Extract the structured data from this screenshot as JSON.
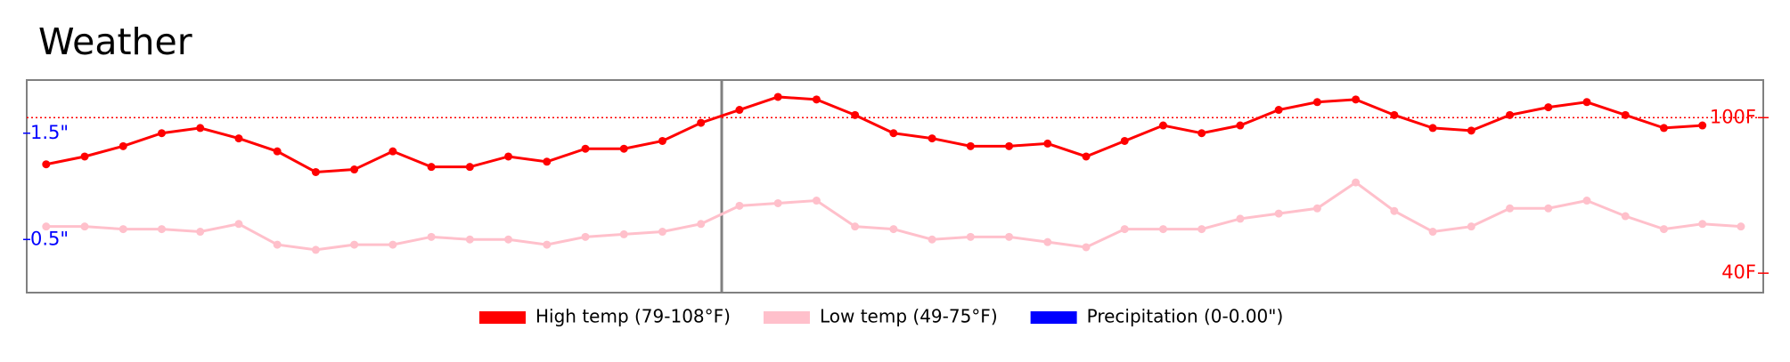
{
  "chart_data": {
    "type": "line",
    "title": "Weather",
    "series": [
      {
        "name": "High temp (79-108°F)",
        "color": "#ff0000",
        "markers": true,
        "values": [
          82,
          85,
          89,
          94,
          96,
          92,
          87,
          79,
          80,
          87,
          81,
          81,
          85,
          83,
          88,
          88,
          91,
          98,
          103,
          108,
          107,
          101,
          94,
          92,
          89,
          89,
          90,
          85,
          91,
          97,
          94,
          97,
          103,
          106,
          107,
          101,
          96,
          95,
          101,
          104,
          106,
          101,
          96,
          97,
          null
        ]
      },
      {
        "name": "Low temp (49-75°F)",
        "color": "#ffc0cb",
        "markers": true,
        "values": [
          58,
          58,
          57,
          57,
          56,
          59,
          51,
          49,
          51,
          51,
          54,
          53,
          53,
          51,
          54,
          55,
          56,
          59,
          66,
          67,
          68,
          58,
          57,
          53,
          54,
          54,
          52,
          50,
          57,
          57,
          57,
          61,
          63,
          65,
          75,
          64,
          56,
          58,
          65,
          65,
          68,
          62,
          57,
          59,
          58
        ]
      },
      {
        "name": "Precipitation (0-0.00\")",
        "color": "#0000ff",
        "axis": "y2",
        "kind": "bar",
        "values": [
          0,
          0,
          0,
          0,
          0,
          0,
          0,
          0,
          0,
          0,
          0,
          0,
          0,
          0,
          0,
          0,
          0,
          0,
          0,
          0,
          0,
          0,
          0,
          0,
          0,
          0,
          0,
          0,
          0,
          0,
          0,
          0,
          0,
          0,
          0,
          0,
          0,
          0,
          0,
          0,
          0,
          0,
          0,
          0,
          0
        ]
      }
    ],
    "ylim": [
      32.5,
      114.5
    ],
    "yticks": [
      {
        "value": 40,
        "label": "40F"
      },
      {
        "value": 100,
        "label": "100F"
      }
    ],
    "ytick_color": "#ff0000",
    "hline": 100,
    "y2lim": [
      0,
      2
    ],
    "y2ticks": [
      {
        "value": 0.5,
        "label": "0.5\""
      },
      {
        "value": 1.5,
        "label": "1.5\""
      }
    ],
    "y2tick_color": "#0000ff",
    "legend": "bottom"
  }
}
